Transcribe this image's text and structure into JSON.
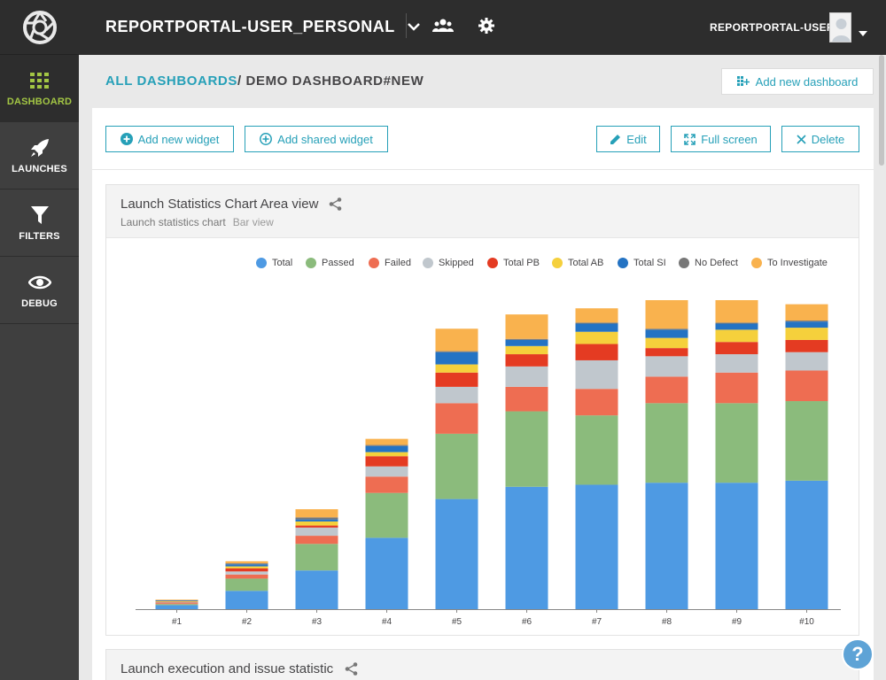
{
  "sidebar": {
    "items": [
      {
        "label": "DASHBOARD",
        "icon": "grid-icon",
        "active": true
      },
      {
        "label": "LAUNCHES",
        "icon": "rocket-icon",
        "active": false
      },
      {
        "label": "FILTERS",
        "icon": "filter-icon",
        "active": false
      },
      {
        "label": "DEBUG",
        "icon": "eye-icon",
        "active": false
      }
    ]
  },
  "header": {
    "project": "REPORTPORTAL-USER_PERSONAL",
    "user": "REPORTPORTAL-USER"
  },
  "breadcrumb": {
    "root": "ALL DASHBOARDS",
    "separator": "/",
    "current": "DEMO DASHBOARD#NEW"
  },
  "toolbar": {
    "add_new_dashboard": "Add new dashboard",
    "add_widget": "Add new widget",
    "add_shared_widget": "Add shared widget",
    "edit": "Edit",
    "full_screen": "Full screen",
    "delete": "Delete"
  },
  "widget1": {
    "title": "Launch Statistics Chart Area view",
    "subtitle": "Launch statistics chart",
    "view": "Bar view"
  },
  "widget2": {
    "title": "Launch execution and issue statistic"
  },
  "help": "?",
  "colors": {
    "accent": "#26a0b8",
    "active_nav": "#a3c644"
  },
  "chart_data": {
    "type": "bar",
    "stacked": true,
    "categories": [
      "#1",
      "#2",
      "#3",
      "#4",
      "#5",
      "#6",
      "#7",
      "#8",
      "#9",
      "#10"
    ],
    "legend_placement": "top-right",
    "series": [
      {
        "name": "Total",
        "color": "#4e9ae3",
        "values": [
          2,
          9,
          19,
          35,
          54,
          60,
          61,
          62,
          62,
          63
        ]
      },
      {
        "name": "Passed",
        "color": "#8bbb7c",
        "values": [
          0.5,
          6,
          13,
          22,
          32,
          37,
          34,
          39,
          39,
          39
        ]
      },
      {
        "name": "Failed",
        "color": "#ee6d52",
        "values": [
          0.5,
          2,
          4,
          8,
          15,
          12,
          13,
          13,
          15,
          15
        ]
      },
      {
        "name": "Skipped",
        "color": "#c0c7cd",
        "values": [
          0.3,
          1.5,
          4,
          5,
          8,
          10,
          14,
          10,
          9,
          9
        ]
      },
      {
        "name": "Total PB",
        "color": "#e43b22",
        "values": [
          0.3,
          1.5,
          1,
          5,
          7,
          6,
          8,
          4,
          6,
          6
        ]
      },
      {
        "name": "Total AB",
        "color": "#f5d03c",
        "values": [
          0.3,
          1,
          2,
          2,
          4,
          4,
          6,
          5,
          6,
          6
        ]
      },
      {
        "name": "Total SI",
        "color": "#2473c3",
        "values": [
          0.3,
          1,
          1,
          3,
          6,
          3,
          4,
          4,
          3,
          3
        ]
      },
      {
        "name": "No Defect",
        "color": "#777777",
        "values": [
          0.2,
          0.5,
          1,
          0.5,
          0.5,
          0.5,
          0.5,
          0.5,
          0.5,
          0.5
        ]
      },
      {
        "name": "To Investigate",
        "color": "#f9b24e",
        "values": [
          0.3,
          1,
          4,
          3,
          11,
          12,
          7,
          14,
          11,
          8
        ]
      }
    ]
  }
}
